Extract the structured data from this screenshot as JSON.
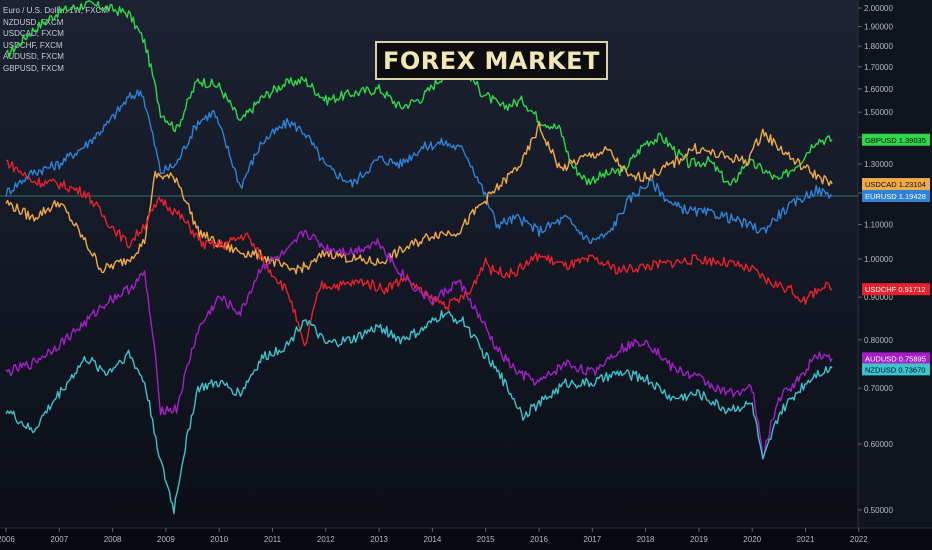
{
  "legend": {
    "items": [
      "Euro / U.S. Dollar, 1W, FXCM",
      "NZDUSD, FXCM",
      "USDCAD, FXCM",
      "USDCHF, FXCM",
      "AUDUSD, FXCM",
      "GBPUSD, FXCM"
    ]
  },
  "title": "FOREX MARKET",
  "chart_data": {
    "type": "line",
    "title": "FOREX MARKET",
    "xlim": [
      2006.0,
      2022.4
    ],
    "ylim": [
      0.45,
      2.02
    ],
    "y_scale": "log",
    "x_ticks": [
      "2006",
      "2007",
      "2008",
      "2009",
      "2010",
      "2011",
      "2012",
      "2013",
      "2014",
      "2015",
      "2016",
      "2017",
      "2018",
      "2019",
      "2020",
      "2021",
      "2022"
    ],
    "y_ticks": [
      "2.00000",
      "1.90000",
      "1.80000",
      "1.70000",
      "1.60000",
      "1.50000",
      "1.40000",
      "1.30000",
      "1.20000",
      "1.10000",
      "1.00000",
      "0.90000",
      "0.80000",
      "0.70000",
      "0.60000",
      "0.50000"
    ],
    "grid": false,
    "legend_position": "top-left",
    "crosshair_value": 1.19,
    "series": [
      {
        "name": "GBPUSD",
        "color": "#2fd84a",
        "label": "GBPUSD",
        "last": "1.39035",
        "x": [
          2006.0,
          2006.5,
          2007.0,
          2007.5,
          2007.9,
          2008.3,
          2008.6,
          2008.9,
          2009.2,
          2009.6,
          2010.0,
          2010.4,
          2010.8,
          2011.2,
          2011.6,
          2012.0,
          2012.5,
          2013.0,
          2013.4,
          2013.8,
          2014.2,
          2014.6,
          2014.9,
          2015.3,
          2015.7,
          2016.0,
          2016.4,
          2016.6,
          2016.9,
          2017.2,
          2017.6,
          2018.0,
          2018.3,
          2018.8,
          2019.2,
          2019.6,
          2019.9,
          2020.2,
          2020.5,
          2020.9,
          2021.2,
          2021.5
        ],
        "values": [
          1.75,
          1.88,
          1.98,
          2.02,
          2.0,
          1.97,
          1.82,
          1.5,
          1.43,
          1.64,
          1.61,
          1.46,
          1.56,
          1.62,
          1.64,
          1.55,
          1.58,
          1.6,
          1.52,
          1.56,
          1.66,
          1.7,
          1.59,
          1.52,
          1.55,
          1.47,
          1.43,
          1.3,
          1.24,
          1.26,
          1.28,
          1.38,
          1.4,
          1.3,
          1.31,
          1.22,
          1.31,
          1.28,
          1.24,
          1.31,
          1.39,
          1.39
        ]
      },
      {
        "name": "EURUSD",
        "color": "#2f82d6",
        "label": "EURUSD",
        "last": "1.19428",
        "x": [
          2006.0,
          2006.5,
          2007.0,
          2007.5,
          2007.9,
          2008.3,
          2008.55,
          2008.9,
          2009.2,
          2009.6,
          2009.9,
          2010.4,
          2010.8,
          2011.3,
          2011.6,
          2012.0,
          2012.5,
          2013.0,
          2013.4,
          2013.8,
          2014.2,
          2014.6,
          2014.9,
          2015.2,
          2015.6,
          2016.0,
          2016.5,
          2016.95,
          2017.3,
          2017.7,
          2018.1,
          2018.5,
          2018.9,
          2019.4,
          2019.9,
          2020.2,
          2020.5,
          2020.9,
          2021.2,
          2021.5
        ],
        "values": [
          1.2,
          1.27,
          1.3,
          1.37,
          1.45,
          1.56,
          1.59,
          1.27,
          1.3,
          1.46,
          1.5,
          1.22,
          1.38,
          1.46,
          1.42,
          1.29,
          1.23,
          1.32,
          1.3,
          1.36,
          1.38,
          1.35,
          1.23,
          1.1,
          1.12,
          1.08,
          1.12,
          1.05,
          1.07,
          1.18,
          1.24,
          1.16,
          1.14,
          1.13,
          1.1,
          1.08,
          1.13,
          1.18,
          1.21,
          1.19
        ]
      },
      {
        "name": "USDCAD",
        "color": "#f0aa48",
        "label": "USDCAD",
        "last": "1.23104",
        "x": [
          2006.0,
          2006.5,
          2007.0,
          2007.4,
          2007.8,
          2008.3,
          2008.6,
          2008.8,
          2009.2,
          2009.6,
          2010.0,
          2010.4,
          2010.8,
          2011.3,
          2011.7,
          2012.0,
          2012.5,
          2013.0,
          2013.5,
          2014.0,
          2014.5,
          2014.9,
          2015.3,
          2015.7,
          2016.0,
          2016.4,
          2016.8,
          2017.3,
          2017.7,
          2018.1,
          2018.6,
          2018.9,
          2019.4,
          2019.9,
          2020.2,
          2020.4,
          2020.8,
          2021.2,
          2021.5
        ],
        "values": [
          1.17,
          1.12,
          1.17,
          1.07,
          0.97,
          1.0,
          1.05,
          1.26,
          1.25,
          1.08,
          1.04,
          1.02,
          1.01,
          0.97,
          0.98,
          1.02,
          1.0,
          0.99,
          1.03,
          1.07,
          1.08,
          1.16,
          1.23,
          1.31,
          1.44,
          1.28,
          1.32,
          1.35,
          1.25,
          1.26,
          1.31,
          1.36,
          1.33,
          1.31,
          1.42,
          1.38,
          1.31,
          1.26,
          1.23
        ]
      },
      {
        "name": "USDCHF",
        "color": "#e8212d",
        "label": "USDCHF",
        "last": "0.91712",
        "x": [
          2006.0,
          2006.5,
          2007.0,
          2007.5,
          2007.9,
          2008.3,
          2008.6,
          2008.9,
          2009.3,
          2009.7,
          2010.1,
          2010.5,
          2010.9,
          2011.3,
          2011.6,
          2011.9,
          2012.3,
          2012.7,
          2013.1,
          2013.5,
          2013.9,
          2014.3,
          2014.7,
          2015.0,
          2015.1,
          2015.5,
          2016.0,
          2016.5,
          2017.0,
          2017.5,
          2018.0,
          2018.5,
          2019.0,
          2019.5,
          2020.0,
          2020.3,
          2020.7,
          2021.0,
          2021.3,
          2021.5
        ],
        "values": [
          1.31,
          1.24,
          1.23,
          1.2,
          1.11,
          1.04,
          1.1,
          1.18,
          1.12,
          1.04,
          1.04,
          1.07,
          0.98,
          0.91,
          0.78,
          0.93,
          0.93,
          0.94,
          0.92,
          0.95,
          0.9,
          0.88,
          0.91,
          1.0,
          0.97,
          0.96,
          1.01,
          0.98,
          1.0,
          0.97,
          0.98,
          0.99,
          1.0,
          0.99,
          0.97,
          0.94,
          0.92,
          0.89,
          0.93,
          0.92
        ]
      },
      {
        "name": "AUDUSD",
        "color": "#a320c8",
        "label": "AUDUSD",
        "last": "0.75895",
        "x": [
          2006.0,
          2006.5,
          2007.0,
          2007.5,
          2007.9,
          2008.3,
          2008.6,
          2008.9,
          2009.2,
          2009.6,
          2010.0,
          2010.4,
          2010.8,
          2011.3,
          2011.6,
          2012.0,
          2012.5,
          2013.0,
          2013.3,
          2013.7,
          2014.0,
          2014.5,
          2014.8,
          2015.2,
          2015.6,
          2016.0,
          2016.5,
          2017.0,
          2017.5,
          2018.0,
          2018.5,
          2019.0,
          2019.5,
          2020.0,
          2020.2,
          2020.5,
          2020.9,
          2021.2,
          2021.5
        ],
        "values": [
          0.73,
          0.75,
          0.79,
          0.84,
          0.89,
          0.92,
          0.96,
          0.66,
          0.66,
          0.82,
          0.9,
          0.86,
          0.98,
          1.02,
          1.08,
          1.03,
          1.02,
          1.05,
          0.98,
          0.92,
          0.89,
          0.94,
          0.87,
          0.78,
          0.73,
          0.71,
          0.75,
          0.73,
          0.78,
          0.8,
          0.74,
          0.72,
          0.69,
          0.7,
          0.58,
          0.68,
          0.72,
          0.77,
          0.76
        ]
      },
      {
        "name": "NZDUSD",
        "color": "#3cc3cc",
        "label": "NZDUSD",
        "last": "0.73670",
        "x": [
          2006.0,
          2006.5,
          2007.0,
          2007.5,
          2007.9,
          2008.3,
          2008.6,
          2008.9,
          2009.15,
          2009.6,
          2010.0,
          2010.4,
          2010.8,
          2011.3,
          2011.6,
          2012.0,
          2012.5,
          2013.0,
          2013.4,
          2013.8,
          2014.2,
          2014.6,
          2014.9,
          2015.3,
          2015.7,
          2016.0,
          2016.5,
          2017.0,
          2017.5,
          2018.0,
          2018.5,
          2019.0,
          2019.5,
          2020.0,
          2020.2,
          2020.5,
          2020.9,
          2021.2,
          2021.5
        ],
        "values": [
          0.66,
          0.62,
          0.69,
          0.76,
          0.73,
          0.77,
          0.71,
          0.57,
          0.5,
          0.7,
          0.71,
          0.69,
          0.76,
          0.79,
          0.85,
          0.79,
          0.8,
          0.83,
          0.8,
          0.82,
          0.86,
          0.84,
          0.78,
          0.72,
          0.65,
          0.67,
          0.71,
          0.71,
          0.73,
          0.72,
          0.68,
          0.69,
          0.66,
          0.67,
          0.57,
          0.65,
          0.7,
          0.73,
          0.74
        ]
      }
    ]
  }
}
